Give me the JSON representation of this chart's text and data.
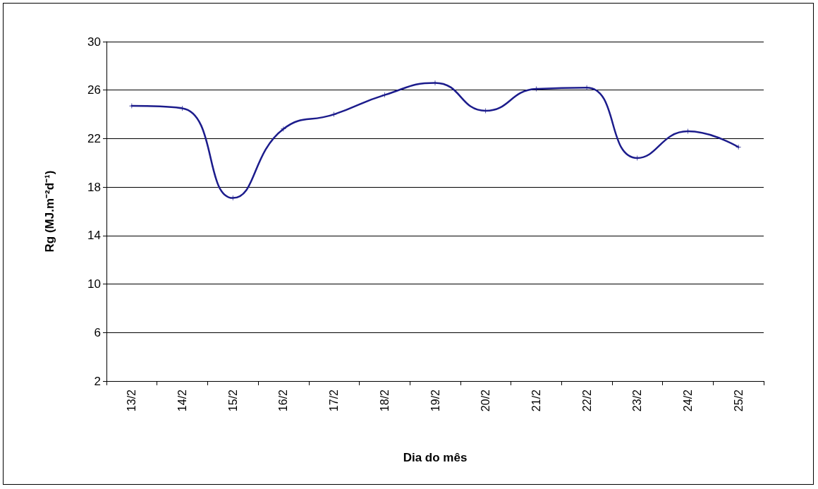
{
  "chart_data": {
    "type": "line",
    "xlabel": "Dia do mês",
    "ylabel": "Rg (MJ.m⁻²d⁻¹)",
    "categories": [
      "13/2",
      "14/2",
      "15/2",
      "16/2",
      "17/2",
      "18/2",
      "19/2",
      "20/2",
      "21/2",
      "22/2",
      "23/2",
      "24/2",
      "25/2"
    ],
    "series": [
      {
        "color": "#1c1c8c",
        "values": [
          24.7,
          24.5,
          17.1,
          22.8,
          24.0,
          25.6,
          26.6,
          24.3,
          26.1,
          26.2,
          20.4,
          22.6,
          21.3
        ]
      }
    ],
    "ylim": [
      2,
      30
    ],
    "yticks": [
      2,
      6,
      10,
      14,
      18,
      22,
      26,
      30
    ],
    "grid": "y",
    "marker": "cross",
    "line_style": "solid"
  }
}
